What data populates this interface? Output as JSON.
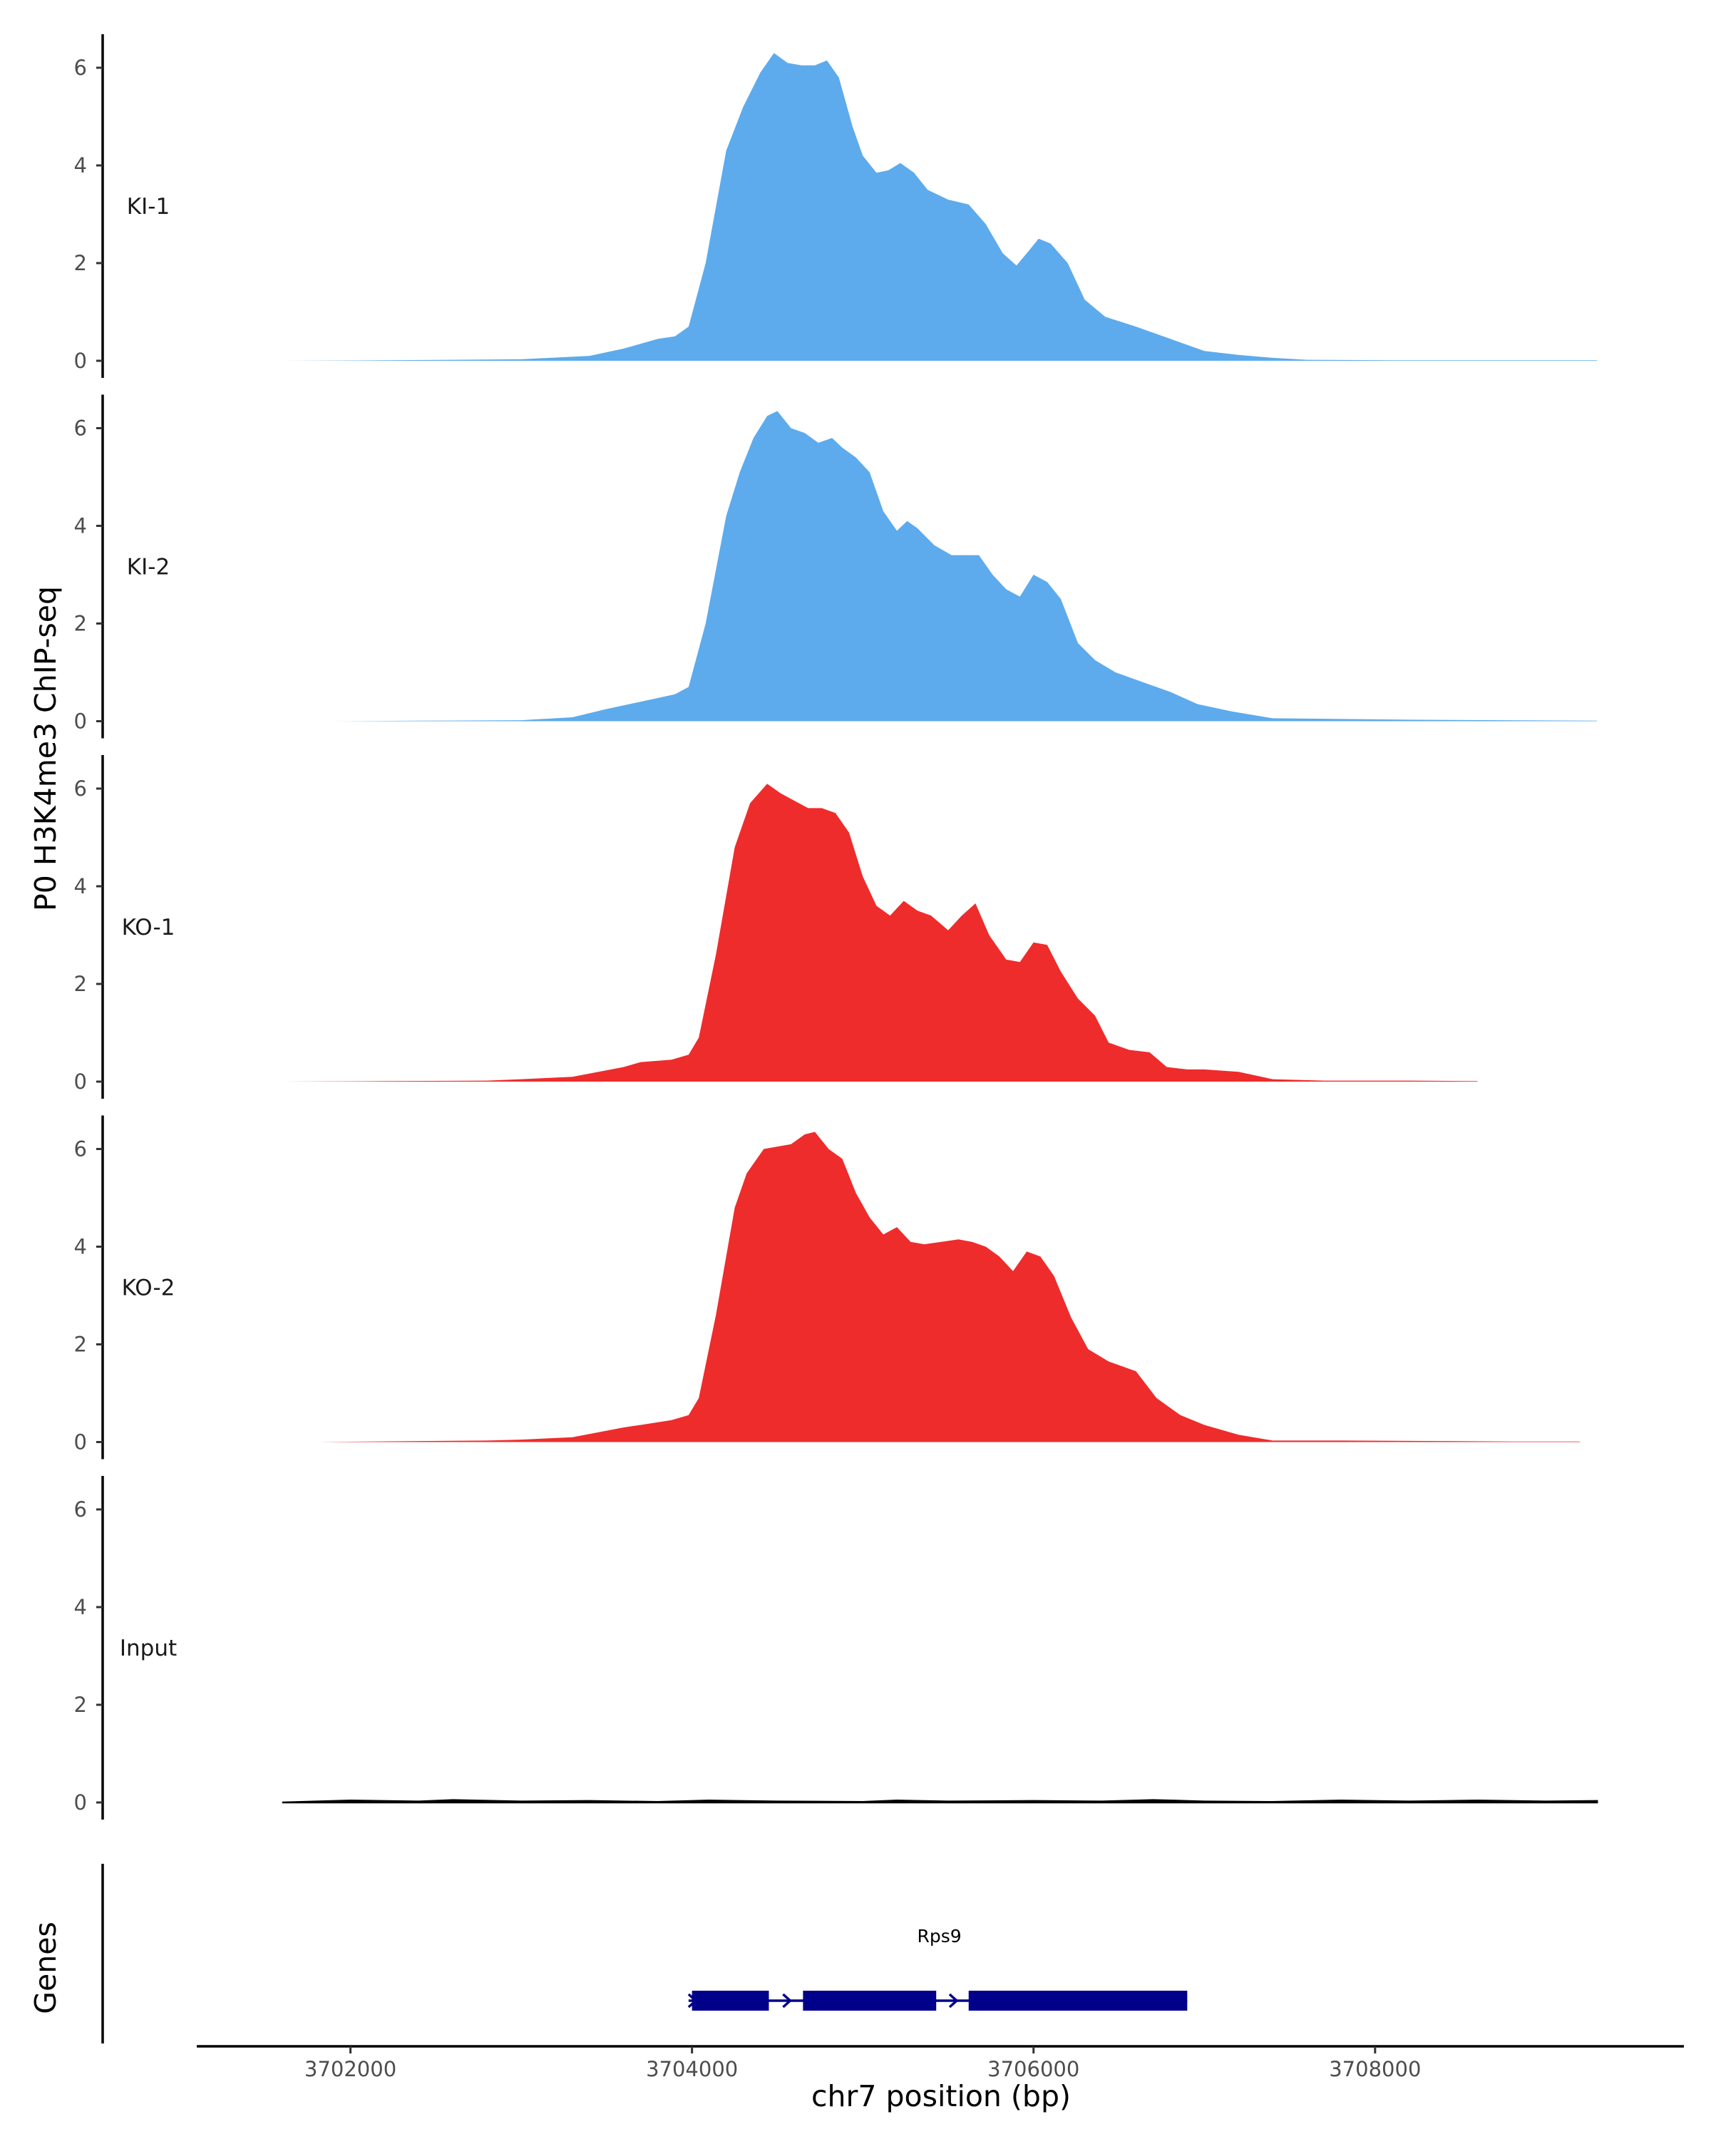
{
  "chart_data": {
    "type": "area",
    "ylabel": "P0 H3K4me3 ChIP-seq",
    "xlabel": "chr7 position (bp)",
    "gene_track_label": "Genes",
    "xlim": [
      3701100,
      3709800
    ],
    "ylim": [
      0,
      6.6
    ],
    "x_ticks": [
      3702000,
      3704000,
      3706000,
      3708000
    ],
    "x_tick_labels": [
      "3702000",
      "3704000",
      "3706000",
      "3708000"
    ],
    "y_ticks": [
      0,
      2,
      4,
      6
    ],
    "y_tick_labels": [
      "0",
      "2",
      "4",
      "6"
    ],
    "grid": false,
    "series": [
      {
        "name": "KI-1",
        "color": "#5dabec",
        "points": [
          [
            3701600,
            0
          ],
          [
            3702200,
            0.01
          ],
          [
            3702600,
            0.02
          ],
          [
            3703000,
            0.03
          ],
          [
            3703400,
            0.1
          ],
          [
            3703600,
            0.25
          ],
          [
            3703800,
            0.45
          ],
          [
            3703900,
            0.5
          ],
          [
            3703980,
            0.7
          ],
          [
            3704080,
            2.0
          ],
          [
            3704200,
            4.3
          ],
          [
            3704300,
            5.2
          ],
          [
            3704400,
            5.9
          ],
          [
            3704480,
            6.3
          ],
          [
            3704560,
            6.1
          ],
          [
            3704640,
            6.05
          ],
          [
            3704720,
            6.05
          ],
          [
            3704790,
            6.15
          ],
          [
            3704860,
            5.8
          ],
          [
            3704940,
            4.8
          ],
          [
            3705000,
            4.2
          ],
          [
            3705080,
            3.85
          ],
          [
            3705150,
            3.9
          ],
          [
            3705220,
            4.05
          ],
          [
            3705300,
            3.85
          ],
          [
            3705380,
            3.5
          ],
          [
            3705500,
            3.3
          ],
          [
            3705620,
            3.2
          ],
          [
            3705720,
            2.8
          ],
          [
            3705820,
            2.2
          ],
          [
            3705900,
            1.95
          ],
          [
            3705960,
            2.2
          ],
          [
            3706030,
            2.5
          ],
          [
            3706100,
            2.4
          ],
          [
            3706200,
            2.0
          ],
          [
            3706300,
            1.25
          ],
          [
            3706420,
            0.9
          ],
          [
            3706600,
            0.7
          ],
          [
            3706760,
            0.5
          ],
          [
            3706880,
            0.35
          ],
          [
            3707000,
            0.2
          ],
          [
            3707200,
            0.12
          ],
          [
            3707400,
            0.06
          ],
          [
            3707600,
            0.02
          ],
          [
            3708100,
            0.01
          ],
          [
            3709300,
            0.01
          ]
        ]
      },
      {
        "name": "KI-2",
        "color": "#5dabec",
        "points": [
          [
            3701900,
            0
          ],
          [
            3702400,
            0.01
          ],
          [
            3703000,
            0.02
          ],
          [
            3703300,
            0.08
          ],
          [
            3703500,
            0.25
          ],
          [
            3703700,
            0.4
          ],
          [
            3703900,
            0.55
          ],
          [
            3703980,
            0.7
          ],
          [
            3704080,
            2.0
          ],
          [
            3704200,
            4.2
          ],
          [
            3704280,
            5.1
          ],
          [
            3704360,
            5.8
          ],
          [
            3704440,
            6.25
          ],
          [
            3704500,
            6.35
          ],
          [
            3704580,
            6.0
          ],
          [
            3704660,
            5.9
          ],
          [
            3704740,
            5.7
          ],
          [
            3704820,
            5.8
          ],
          [
            3704880,
            5.6
          ],
          [
            3704960,
            5.4
          ],
          [
            3705040,
            5.1
          ],
          [
            3705120,
            4.3
          ],
          [
            3705200,
            3.9
          ],
          [
            3705260,
            4.1
          ],
          [
            3705320,
            3.95
          ],
          [
            3705420,
            3.6
          ],
          [
            3705520,
            3.4
          ],
          [
            3705600,
            3.4
          ],
          [
            3705680,
            3.4
          ],
          [
            3705760,
            3.0
          ],
          [
            3705840,
            2.7
          ],
          [
            3705920,
            2.55
          ],
          [
            3706000,
            3.0
          ],
          [
            3706080,
            2.85
          ],
          [
            3706160,
            2.5
          ],
          [
            3706260,
            1.6
          ],
          [
            3706360,
            1.25
          ],
          [
            3706480,
            1.0
          ],
          [
            3706640,
            0.8
          ],
          [
            3706800,
            0.6
          ],
          [
            3706960,
            0.35
          ],
          [
            3707160,
            0.2
          ],
          [
            3707400,
            0.06
          ],
          [
            3707700,
            0.05
          ],
          [
            3708200,
            0.03
          ],
          [
            3709300,
            0.01
          ]
        ]
      },
      {
        "name": "KO-1",
        "color": "#ee2c2c",
        "points": [
          [
            3701600,
            0
          ],
          [
            3702200,
            0.01
          ],
          [
            3702800,
            0.02
          ],
          [
            3703000,
            0.05
          ],
          [
            3703300,
            0.1
          ],
          [
            3703600,
            0.3
          ],
          [
            3703700,
            0.4
          ],
          [
            3703880,
            0.45
          ],
          [
            3703980,
            0.55
          ],
          [
            3704040,
            0.9
          ],
          [
            3704140,
            2.6
          ],
          [
            3704250,
            4.8
          ],
          [
            3704340,
            5.7
          ],
          [
            3704440,
            6.1
          ],
          [
            3704520,
            5.9
          ],
          [
            3704600,
            5.75
          ],
          [
            3704680,
            5.6
          ],
          [
            3704760,
            5.6
          ],
          [
            3704840,
            5.5
          ],
          [
            3704920,
            5.1
          ],
          [
            3705000,
            4.2
          ],
          [
            3705080,
            3.6
          ],
          [
            3705160,
            3.4
          ],
          [
            3705240,
            3.7
          ],
          [
            3705320,
            3.5
          ],
          [
            3705400,
            3.4
          ],
          [
            3705500,
            3.1
          ],
          [
            3705580,
            3.4
          ],
          [
            3705660,
            3.65
          ],
          [
            3705740,
            3.0
          ],
          [
            3705840,
            2.5
          ],
          [
            3705920,
            2.45
          ],
          [
            3706000,
            2.85
          ],
          [
            3706080,
            2.8
          ],
          [
            3706160,
            2.25
          ],
          [
            3706260,
            1.7
          ],
          [
            3706360,
            1.35
          ],
          [
            3706440,
            0.8
          ],
          [
            3706560,
            0.65
          ],
          [
            3706680,
            0.6
          ],
          [
            3706780,
            0.3
          ],
          [
            3706900,
            0.25
          ],
          [
            3707000,
            0.25
          ],
          [
            3707200,
            0.2
          ],
          [
            3707400,
            0.05
          ],
          [
            3707700,
            0.02
          ],
          [
            3708200,
            0.02
          ],
          [
            3708600,
            0.01
          ]
        ]
      },
      {
        "name": "KO-2",
        "color": "#ee2c2c",
        "points": [
          [
            3701800,
            0
          ],
          [
            3702400,
            0.02
          ],
          [
            3702800,
            0.03
          ],
          [
            3703000,
            0.05
          ],
          [
            3703300,
            0.1
          ],
          [
            3703600,
            0.3
          ],
          [
            3703700,
            0.35
          ],
          [
            3703880,
            0.45
          ],
          [
            3703980,
            0.55
          ],
          [
            3704040,
            0.9
          ],
          [
            3704140,
            2.6
          ],
          [
            3704250,
            4.8
          ],
          [
            3704320,
            5.5
          ],
          [
            3704420,
            6.0
          ],
          [
            3704500,
            6.05
          ],
          [
            3704580,
            6.1
          ],
          [
            3704660,
            6.3
          ],
          [
            3704720,
            6.35
          ],
          [
            3704800,
            6.0
          ],
          [
            3704880,
            5.8
          ],
          [
            3704960,
            5.1
          ],
          [
            3705040,
            4.6
          ],
          [
            3705120,
            4.25
          ],
          [
            3705200,
            4.4
          ],
          [
            3705280,
            4.1
          ],
          [
            3705360,
            4.05
          ],
          [
            3705460,
            4.1
          ],
          [
            3705560,
            4.15
          ],
          [
            3705640,
            4.1
          ],
          [
            3705720,
            4.0
          ],
          [
            3705800,
            3.8
          ],
          [
            3705880,
            3.5
          ],
          [
            3705960,
            3.9
          ],
          [
            3706040,
            3.8
          ],
          [
            3706120,
            3.4
          ],
          [
            3706220,
            2.55
          ],
          [
            3706320,
            1.9
          ],
          [
            3706440,
            1.65
          ],
          [
            3706600,
            1.45
          ],
          [
            3706720,
            0.9
          ],
          [
            3706860,
            0.55
          ],
          [
            3707000,
            0.35
          ],
          [
            3707200,
            0.15
          ],
          [
            3707400,
            0.03
          ],
          [
            3707800,
            0.03
          ],
          [
            3708400,
            0.02
          ],
          [
            3708800,
            0.01
          ],
          [
            3709200,
            0.01
          ]
        ]
      },
      {
        "name": "Input",
        "color": "#000000",
        "points": [
          [
            3701600,
            0
          ],
          [
            3702000,
            0.04
          ],
          [
            3702400,
            0.02
          ],
          [
            3702600,
            0.05
          ],
          [
            3703000,
            0.02
          ],
          [
            3703400,
            0.03
          ],
          [
            3703800,
            0.01
          ],
          [
            3704100,
            0.04
          ],
          [
            3704500,
            0.02
          ],
          [
            3705000,
            0.01
          ],
          [
            3705200,
            0.04
          ],
          [
            3705500,
            0.02
          ],
          [
            3706000,
            0.03
          ],
          [
            3706400,
            0.02
          ],
          [
            3706700,
            0.05
          ],
          [
            3707000,
            0.02
          ],
          [
            3707400,
            0.01
          ],
          [
            3707800,
            0.04
          ],
          [
            3708200,
            0.02
          ],
          [
            3708600,
            0.04
          ],
          [
            3709000,
            0.02
          ],
          [
            3709300,
            0.03
          ]
        ]
      }
    ],
    "genes": [
      {
        "name": "Rps9",
        "color": "#00008b",
        "strand": "+",
        "start": 3703980,
        "end": 3706900,
        "exons": [
          [
            3704000,
            3704450
          ],
          [
            3704650,
            3705430
          ],
          [
            3705620,
            3706900
          ]
        ]
      }
    ]
  }
}
